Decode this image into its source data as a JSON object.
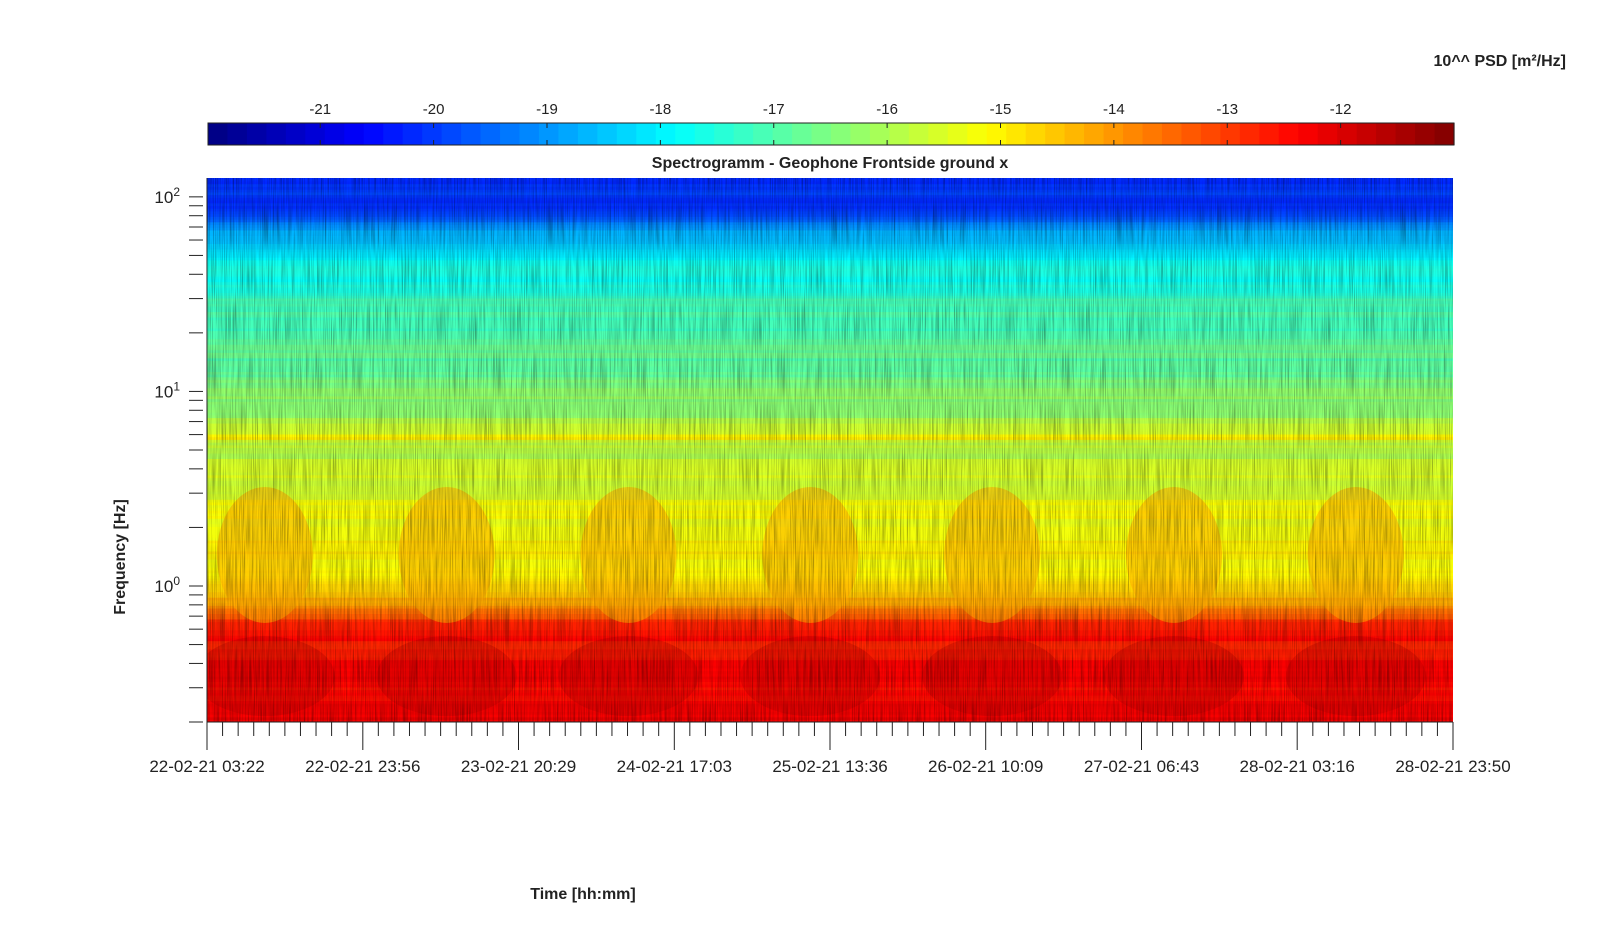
{
  "chart_data": {
    "type": "heatmap",
    "title": "Spectrogramm - Geophone Frontside ground x",
    "xlabel": "Time [hh:mm]",
    "ylabel": "Frequency [Hz]",
    "colorbar_label": "10^^ PSD [m²/Hz]",
    "colormap": "jet",
    "clim": [
      -21.99,
      -11.0
    ],
    "colorbar_ticks": [
      "-21",
      "-20",
      "-19",
      "-18",
      "-17",
      "-16",
      "-15",
      "-14",
      "-13",
      "-12"
    ],
    "colorbar_tick_values": [
      -21,
      -20,
      -19,
      -18,
      -17,
      -16,
      -15,
      -14,
      -13,
      -12
    ],
    "x_ticks": [
      "22-02-21 03:22",
      "22-02-21 23:56",
      "23-02-21 20:29",
      "24-02-21 17:03",
      "25-02-21 13:36",
      "26-02-21 10:09",
      "27-02-21 06:43",
      "28-02-21 03:16",
      "28-02-21 23:50"
    ],
    "xlim": [
      "22-02-21 03:22",
      "28-02-21 23:50"
    ],
    "yscale": "log",
    "ylim": [
      0.2,
      125
    ],
    "y_ticks": [
      {
        "value": 1,
        "base": "10",
        "exp": "0"
      },
      {
        "value": 10,
        "base": "10",
        "exp": "1"
      },
      {
        "value": 100,
        "base": "10",
        "exp": "2"
      }
    ],
    "psd_profile": {
      "frequency_hz": [
        0.2,
        0.3,
        0.45,
        0.6,
        0.75,
        0.9,
        1.2,
        2.0,
        3.0,
        4.5,
        5.5,
        5.8,
        6.2,
        8.0,
        12,
        20,
        30,
        45,
        60,
        80,
        125
      ],
      "log10_psd": [
        -12.3,
        -12.4,
        -12.5,
        -12.7,
        -13.5,
        -14.6,
        -15.0,
        -15.1,
        -15.4,
        -15.8,
        -15.6,
        -15.0,
        -15.7,
        -16.2,
        -16.7,
        -17.0,
        -17.3,
        -17.8,
        -18.4,
        -19.8,
        -20.3
      ]
    },
    "daily_activity_band_hz": [
      0.7,
      3.5
    ],
    "activity_day_centers": [
      "22-02-21 11:00",
      "23-02-21 11:00",
      "24-02-21 11:00",
      "25-02-21 11:00",
      "26-02-21 11:00",
      "27-02-21 11:00",
      "28-02-21 11:00"
    ]
  }
}
